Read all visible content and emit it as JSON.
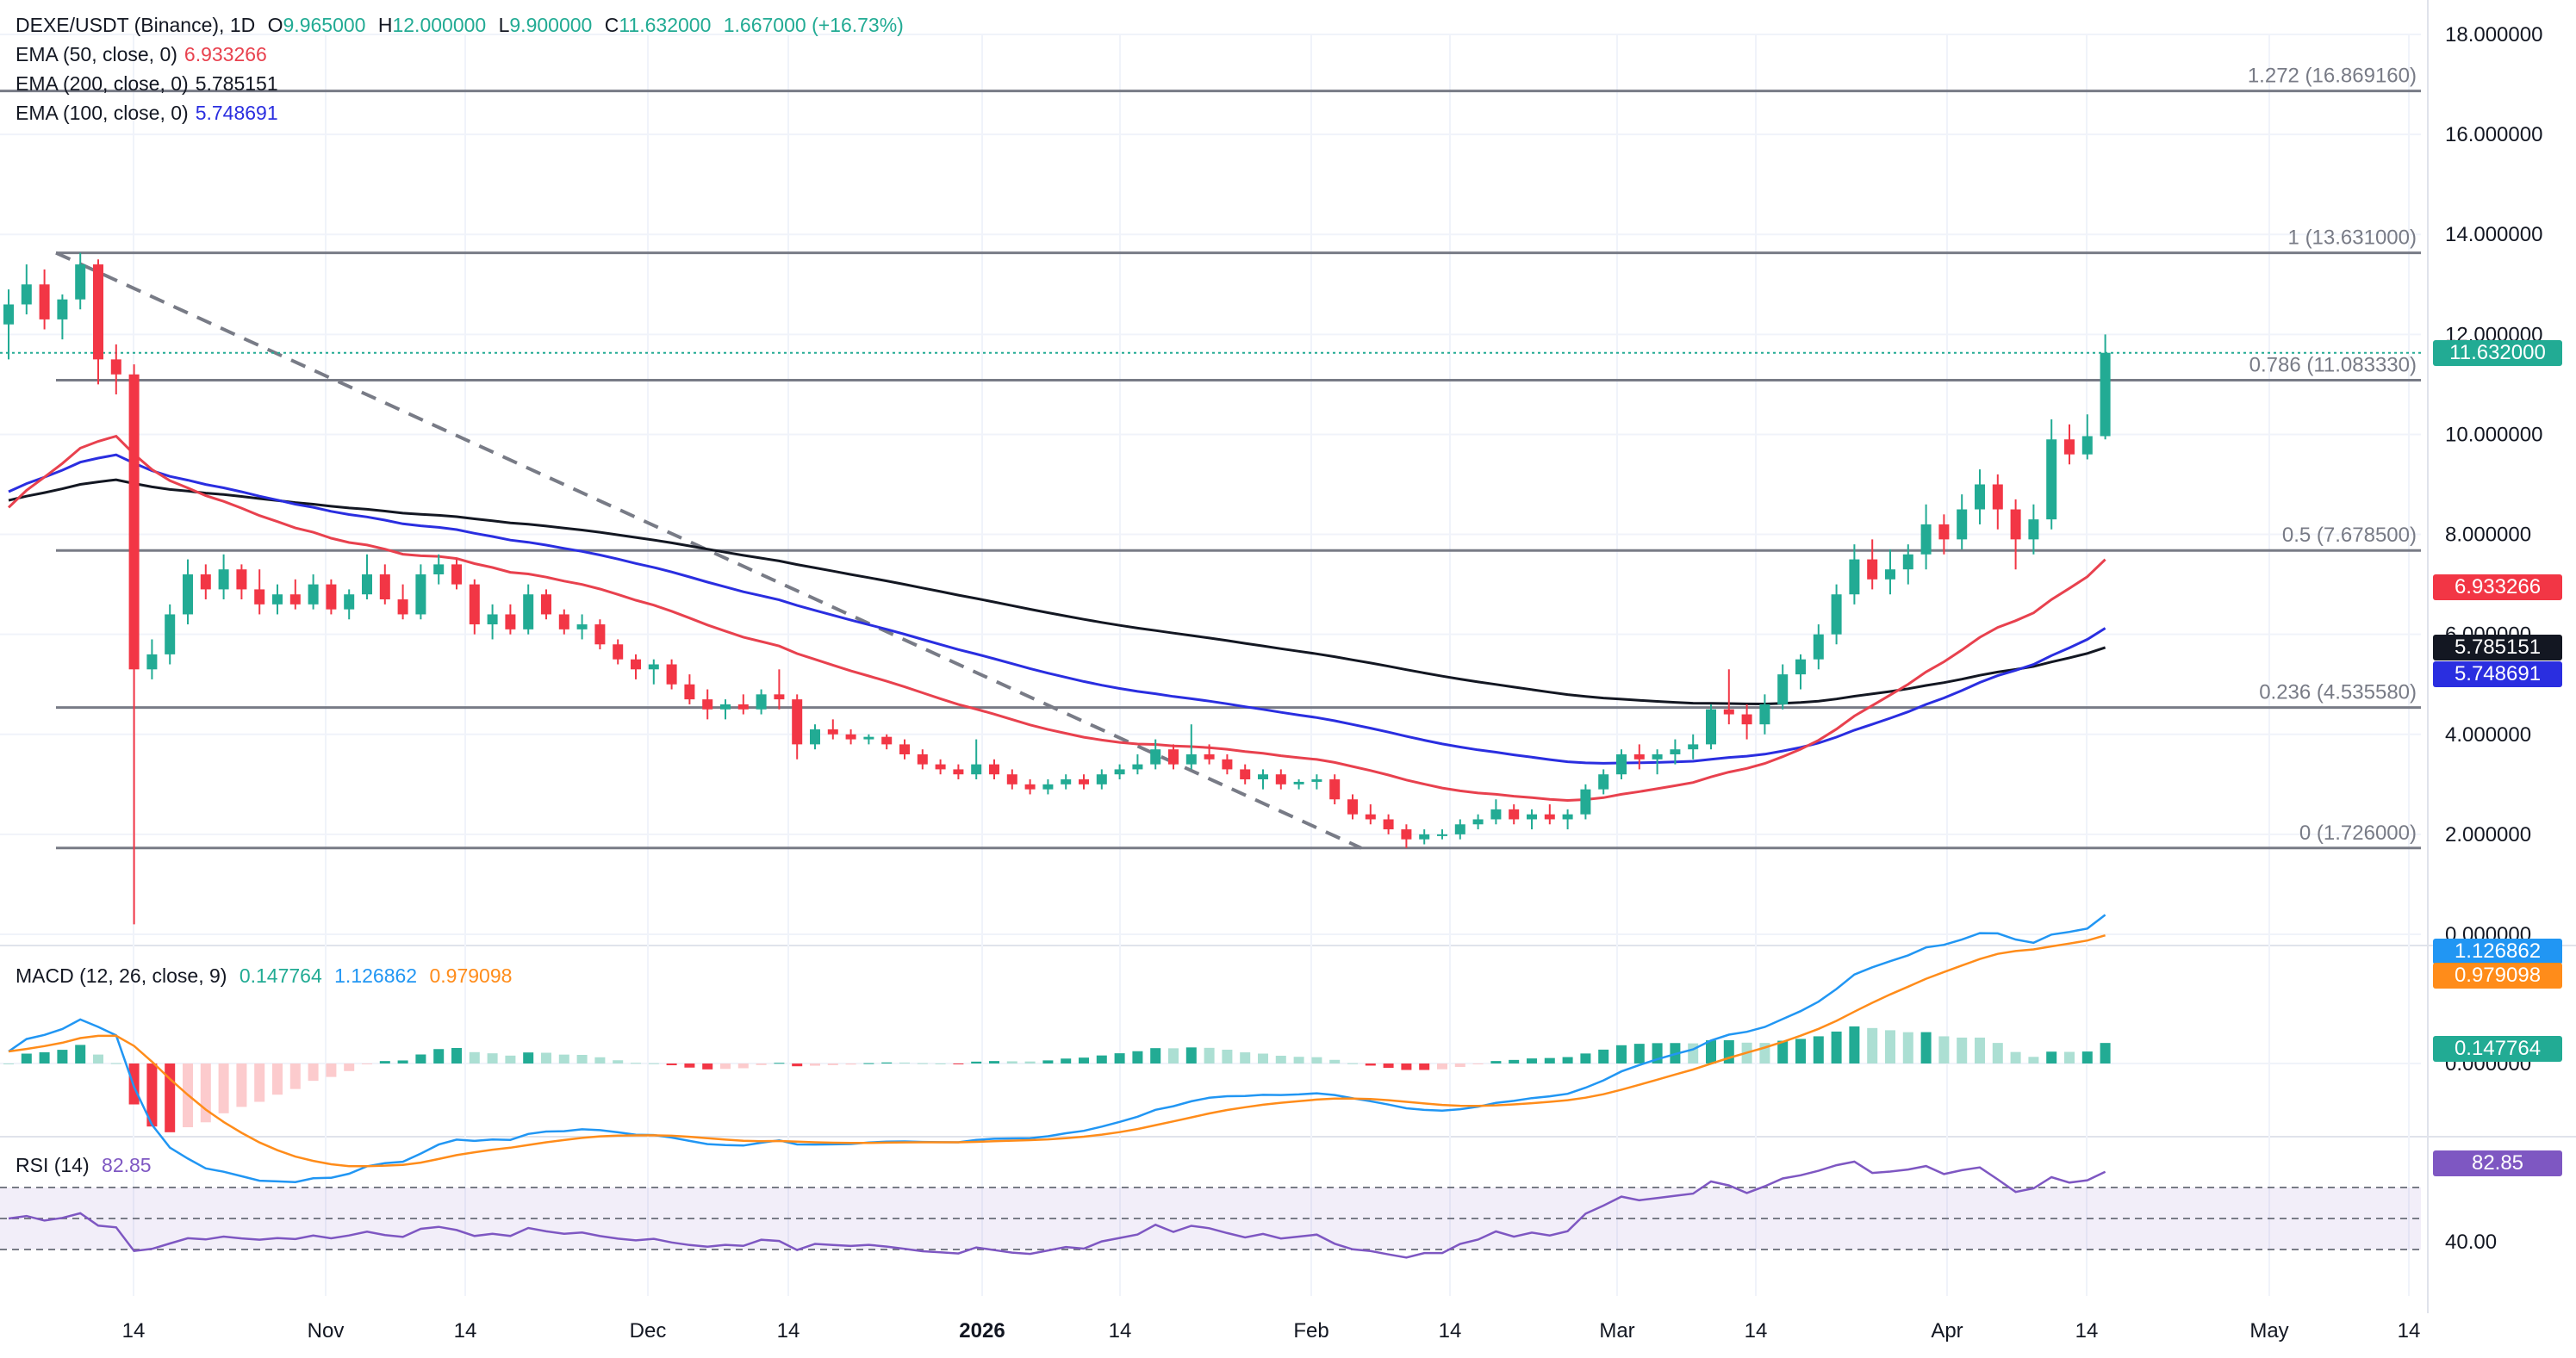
{
  "header": {
    "symbol": "DEXE/USDT (Binance), 1D",
    "open_label": "O",
    "open": "9.965000",
    "high_label": "H",
    "high": "12.000000",
    "low_label": "L",
    "low": "9.900000",
    "close_label": "C",
    "close": "11.632000",
    "change": "1.667000 (+16.73%)"
  },
  "indicators": [
    {
      "label": "EMA (50, close, 0)",
      "value": "6.933266",
      "color": "#e8414e"
    },
    {
      "label": "EMA (200, close, 0)",
      "value": "5.785151",
      "color": "#131722"
    },
    {
      "label": "EMA (100, close, 0)",
      "value": "5.748691",
      "color": "#2a2ee0"
    }
  ],
  "macd_legend": {
    "label": "MACD (12, 26, close, 9)",
    "hist": "0.147764",
    "macd": "1.126862",
    "signal": "0.979098"
  },
  "rsi_legend": {
    "label": "RSI (14)",
    "value": "82.85"
  },
  "colors": {
    "up": "#22ab94",
    "down": "#f23645",
    "ema50": "#e8414e",
    "ema100": "#2a2ee0",
    "ema200": "#131722",
    "macd": "#2196f3",
    "signal": "#ff8c1a",
    "rsi": "#7e57c2",
    "fib": "#787b86"
  },
  "price_axis": [
    "18.000000",
    "16.000000",
    "14.000000",
    "12.000000",
    "10.000000",
    "8.000000",
    "6.000000",
    "4.000000",
    "2.000000",
    "0.000000"
  ],
  "time_axis": [
    "14",
    "Nov",
    "14",
    "Dec",
    "14",
    "2026",
    "14",
    "Feb",
    "14",
    "Mar",
    "14",
    "Apr",
    "14",
    "May",
    "14"
  ],
  "price_badges": [
    {
      "value": "11.632000",
      "color": "#22ab94"
    },
    {
      "value": "6.933266",
      "color": "#f23645"
    },
    {
      "value": "5.785151",
      "color": "#131722"
    },
    {
      "value": "5.748691",
      "color": "#2a2ee0"
    }
  ],
  "macd_badges": [
    {
      "value": "1.126862",
      "color": "#2196f3"
    },
    {
      "value": "0.979098",
      "color": "#ff8c1a"
    },
    {
      "value": "0.147764",
      "color": "#22ab94"
    }
  ],
  "macd_axis": [
    "0.000000"
  ],
  "rsi_axis": [
    "40.00"
  ],
  "rsi_badge": {
    "value": "82.85",
    "color": "#7e57c2"
  },
  "chart_data": {
    "type": "candlestick",
    "title": "DEXE/USDT (Binance), 1D",
    "ylim": [
      0,
      18
    ],
    "fib_levels": [
      {
        "label": "1.272 (16.869160)",
        "value": 16.86916
      },
      {
        "label": "1 (13.631000)",
        "value": 13.631
      },
      {
        "label": "0.786 (11.083330)",
        "value": 11.08333
      },
      {
        "label": "0.5 (7.678500)",
        "value": 7.6785
      },
      {
        "label": "0.236 (4.535580)",
        "value": 4.53558
      },
      {
        "label": "0 (1.726000)",
        "value": 1.726
      }
    ],
    "last_price": 11.632,
    "trendline": [
      [
        13.631,
        0
      ],
      [
        1.726,
        1
      ]
    ],
    "candles": [
      [
        12.2,
        12.9,
        11.5,
        12.6
      ],
      [
        12.6,
        13.4,
        12.4,
        13.0
      ],
      [
        13.0,
        13.3,
        12.1,
        12.3
      ],
      [
        12.3,
        12.8,
        11.9,
        12.7
      ],
      [
        12.7,
        13.631,
        12.5,
        13.4
      ],
      [
        13.4,
        13.5,
        11.0,
        11.5
      ],
      [
        11.5,
        11.8,
        10.8,
        11.2
      ],
      [
        11.2,
        11.4,
        0.2,
        5.3
      ],
      [
        5.3,
        5.9,
        5.1,
        5.6
      ],
      [
        5.6,
        6.6,
        5.4,
        6.4
      ],
      [
        6.4,
        7.5,
        6.2,
        7.2
      ],
      [
        7.2,
        7.4,
        6.7,
        6.9
      ],
      [
        6.9,
        7.6,
        6.7,
        7.3
      ],
      [
        7.3,
        7.4,
        6.7,
        6.9
      ],
      [
        6.9,
        7.3,
        6.4,
        6.6
      ],
      [
        6.6,
        7.0,
        6.4,
        6.8
      ],
      [
        6.8,
        7.1,
        6.5,
        6.6
      ],
      [
        6.6,
        7.2,
        6.5,
        7.0
      ],
      [
        7.0,
        7.1,
        6.4,
        6.5
      ],
      [
        6.5,
        6.9,
        6.3,
        6.8
      ],
      [
        6.8,
        7.6,
        6.7,
        7.2
      ],
      [
        7.2,
        7.4,
        6.6,
        6.7
      ],
      [
        6.7,
        7.0,
        6.3,
        6.4
      ],
      [
        6.4,
        7.4,
        6.3,
        7.2
      ],
      [
        7.2,
        7.6,
        7.0,
        7.4
      ],
      [
        7.4,
        7.5,
        6.9,
        7.0
      ],
      [
        7.0,
        7.1,
        6.0,
        6.2
      ],
      [
        6.2,
        6.6,
        5.9,
        6.4
      ],
      [
        6.4,
        6.6,
        6.0,
        6.1
      ],
      [
        6.1,
        7.0,
        6.0,
        6.8
      ],
      [
        6.8,
        6.9,
        6.3,
        6.4
      ],
      [
        6.4,
        6.5,
        6.0,
        6.1
      ],
      [
        6.1,
        6.4,
        5.9,
        6.2
      ],
      [
        6.2,
        6.3,
        5.7,
        5.8
      ],
      [
        5.8,
        5.9,
        5.4,
        5.5
      ],
      [
        5.5,
        5.6,
        5.1,
        5.3
      ],
      [
        5.3,
        5.5,
        5.0,
        5.4
      ],
      [
        5.4,
        5.5,
        4.9,
        5.0
      ],
      [
        5.0,
        5.2,
        4.6,
        4.7
      ],
      [
        4.7,
        4.9,
        4.3,
        4.5
      ],
      [
        4.5,
        4.7,
        4.3,
        4.6
      ],
      [
        4.6,
        4.8,
        4.4,
        4.5
      ],
      [
        4.5,
        4.9,
        4.4,
        4.8
      ],
      [
        4.8,
        5.3,
        4.5,
        4.7
      ],
      [
        4.7,
        4.8,
        3.5,
        3.8
      ],
      [
        3.8,
        4.2,
        3.7,
        4.1
      ],
      [
        4.1,
        4.3,
        3.9,
        4.0
      ],
      [
        4.0,
        4.1,
        3.8,
        3.9
      ],
      [
        3.9,
        4.0,
        3.8,
        3.95
      ],
      [
        3.95,
        4.0,
        3.7,
        3.8
      ],
      [
        3.8,
        3.9,
        3.5,
        3.6
      ],
      [
        3.6,
        3.7,
        3.3,
        3.4
      ],
      [
        3.4,
        3.5,
        3.2,
        3.3
      ],
      [
        3.3,
        3.4,
        3.1,
        3.2
      ],
      [
        3.2,
        3.9,
        3.1,
        3.4
      ],
      [
        3.4,
        3.5,
        3.1,
        3.2
      ],
      [
        3.2,
        3.3,
        2.9,
        3.0
      ],
      [
        3.0,
        3.1,
        2.8,
        2.9
      ],
      [
        2.9,
        3.1,
        2.8,
        3.0
      ],
      [
        3.0,
        3.2,
        2.9,
        3.1
      ],
      [
        3.1,
        3.2,
        2.9,
        3.0
      ],
      [
        3.0,
        3.3,
        2.9,
        3.2
      ],
      [
        3.2,
        3.4,
        3.1,
        3.3
      ],
      [
        3.3,
        3.6,
        3.2,
        3.4
      ],
      [
        3.4,
        3.9,
        3.3,
        3.7
      ],
      [
        3.7,
        3.8,
        3.3,
        3.4
      ],
      [
        3.4,
        4.2,
        3.3,
        3.6
      ],
      [
        3.6,
        3.8,
        3.4,
        3.5
      ],
      [
        3.5,
        3.6,
        3.2,
        3.3
      ],
      [
        3.3,
        3.4,
        3.0,
        3.1
      ],
      [
        3.1,
        3.3,
        2.9,
        3.2
      ],
      [
        3.2,
        3.3,
        2.9,
        3.0
      ],
      [
        3.0,
        3.1,
        2.9,
        3.05
      ],
      [
        3.05,
        3.2,
        2.9,
        3.1
      ],
      [
        3.1,
        3.2,
        2.6,
        2.7
      ],
      [
        2.7,
        2.8,
        2.3,
        2.4
      ],
      [
        2.4,
        2.6,
        2.2,
        2.3
      ],
      [
        2.3,
        2.4,
        2.0,
        2.1
      ],
      [
        2.1,
        2.2,
        1.726,
        1.9
      ],
      [
        1.9,
        2.1,
        1.8,
        2.0
      ],
      [
        2.0,
        2.1,
        1.9,
        2.0
      ],
      [
        2.0,
        2.3,
        1.9,
        2.2
      ],
      [
        2.2,
        2.4,
        2.1,
        2.3
      ],
      [
        2.3,
        2.7,
        2.2,
        2.5
      ],
      [
        2.5,
        2.6,
        2.2,
        2.3
      ],
      [
        2.3,
        2.5,
        2.1,
        2.4
      ],
      [
        2.4,
        2.6,
        2.2,
        2.3
      ],
      [
        2.3,
        2.5,
        2.1,
        2.4
      ],
      [
        2.4,
        3.0,
        2.3,
        2.9
      ],
      [
        2.9,
        3.3,
        2.8,
        3.2
      ],
      [
        3.2,
        3.7,
        3.1,
        3.6
      ],
      [
        3.6,
        3.8,
        3.3,
        3.5
      ],
      [
        3.5,
        3.7,
        3.2,
        3.6
      ],
      [
        3.6,
        3.9,
        3.4,
        3.7
      ],
      [
        3.7,
        4.0,
        3.5,
        3.8
      ],
      [
        3.8,
        4.6,
        3.7,
        4.5
      ],
      [
        4.5,
        5.3,
        4.2,
        4.4
      ],
      [
        4.4,
        4.6,
        3.9,
        4.2
      ],
      [
        4.2,
        4.8,
        4.0,
        4.6
      ],
      [
        4.6,
        5.4,
        4.5,
        5.2
      ],
      [
        5.2,
        5.6,
        4.9,
        5.5
      ],
      [
        5.5,
        6.2,
        5.3,
        6.0
      ],
      [
        6.0,
        7.0,
        5.8,
        6.8
      ],
      [
        6.8,
        7.8,
        6.6,
        7.5
      ],
      [
        7.5,
        7.9,
        6.9,
        7.1
      ],
      [
        7.1,
        7.7,
        6.8,
        7.3
      ],
      [
        7.3,
        7.8,
        7.0,
        7.6
      ],
      [
        7.6,
        8.6,
        7.3,
        8.2
      ],
      [
        8.2,
        8.4,
        7.6,
        7.9
      ],
      [
        7.9,
        8.8,
        7.7,
        8.5
      ],
      [
        8.5,
        9.3,
        8.2,
        9.0
      ],
      [
        9.0,
        9.2,
        8.1,
        8.5
      ],
      [
        8.5,
        8.7,
        7.3,
        7.9
      ],
      [
        7.9,
        8.6,
        7.6,
        8.3
      ],
      [
        8.3,
        10.3,
        8.1,
        9.9
      ],
      [
        9.9,
        10.2,
        9.4,
        9.6
      ],
      [
        9.6,
        10.4,
        9.5,
        9.965
      ],
      [
        9.965,
        12.0,
        9.9,
        11.632
      ]
    ]
  }
}
